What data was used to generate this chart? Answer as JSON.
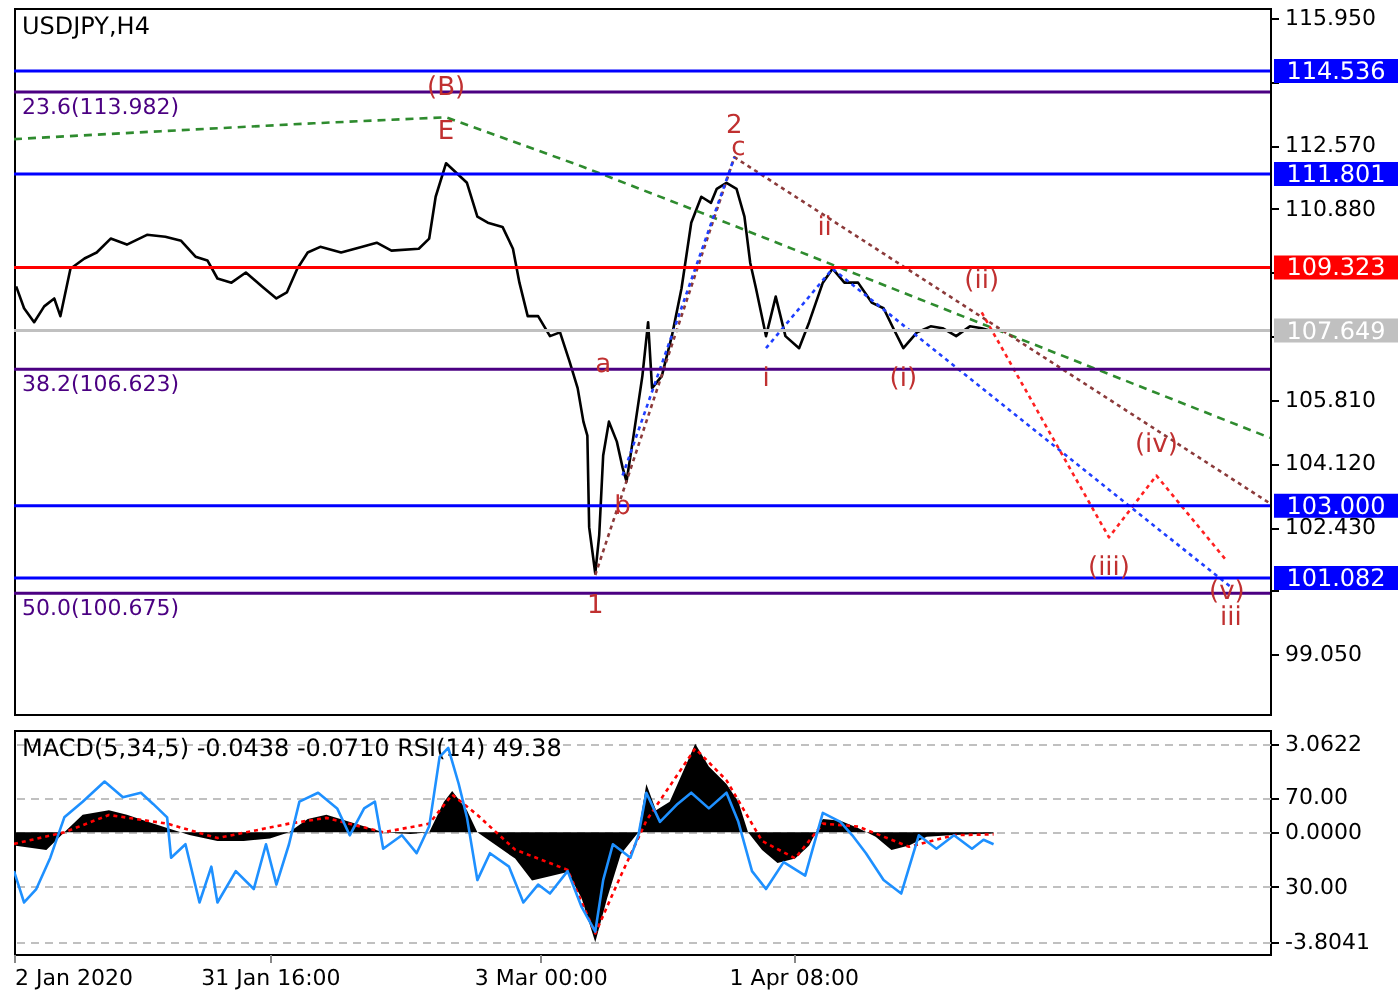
{
  "chart_data": [
    {
      "type": "line",
      "title": "USDJPY,H4",
      "xlim": [
        "2020-01-02T00:00",
        "2020-05-26T14:00"
      ],
      "ylim": [
        97.47,
        116.21
      ],
      "tick_labels": "y",
      "yticks": [
        {
          "value": 115.95,
          "label": "115.950"
        },
        {
          "value": 114.26,
          "label": null
        },
        {
          "value": 112.57,
          "label": "112.570"
        },
        {
          "value": 110.88,
          "label": "110.880"
        },
        {
          "value": 109.19,
          "label": null
        },
        {
          "value": 107.5,
          "label": null
        },
        {
          "value": 105.81,
          "label": "105.810"
        },
        {
          "value": 104.12,
          "label": "104.120"
        },
        {
          "value": 102.43,
          "label": "102.430"
        },
        {
          "value": 100.74,
          "label": null
        },
        {
          "value": 99.05,
          "label": "99.050"
        }
      ],
      "series": [
        {
          "color": "#000000",
          "x": [
            "2020-01-02T06:00",
            "2020-01-03T04:00",
            "2020-01-04T08:00",
            "2020-01-05T12:00",
            "2020-01-06T16:00",
            "2020-01-07T09:00",
            "2020-01-08T13:00",
            "2020-01-10T04:00",
            "2020-01-11T14:00",
            "2020-01-13T05:00",
            "2020-01-15T02:00",
            "2020-01-17T10:00",
            "2020-01-19T13:00",
            "2020-01-21T09:00",
            "2020-01-23T01:00",
            "2020-01-24T10:00",
            "2020-01-25T14:00",
            "2020-01-27T05:00",
            "2020-01-28T21:00",
            "2020-01-30T18:00",
            "2020-02-01T10:00",
            "2020-02-02T15:00",
            "2020-02-03T20:00",
            "2020-02-05T01:00",
            "2020-02-06T12:00",
            "2020-02-08T22:00",
            "2020-02-11T09:00",
            "2020-02-13T01:00",
            "2020-02-14T18:00",
            "2020-02-17T22:00",
            "2020-02-19T03:00",
            "2020-02-19T21:00",
            "2020-02-21T02:00",
            "2020-02-22T07:00",
            "2020-02-23T12:00",
            "2020-02-24T17:00",
            "2020-02-25T22:00",
            "2020-02-27T15:00",
            "2020-02-28T20:00",
            "2020-02-29T14:00",
            "2020-03-01T13:00",
            "2020-03-02T18:00",
            "2020-03-04T03:00",
            "2020-03-05T07:00",
            "2020-03-06T10:00",
            "2020-03-07T08:00",
            "2020-03-08T00:00",
            "2020-03-08T11:00",
            "2020-03-08T16:00",
            "2020-03-09T09:00",
            "2020-03-09T20:00",
            "2020-03-10T07:00",
            "2020-03-10T23:00",
            "2020-03-11T21:00",
            "2020-03-12T13:00",
            "2020-03-13T00:00",
            "2020-03-13T17:00",
            "2020-03-14T20:00",
            "2020-03-15T12:00",
            "2020-03-15T23:00",
            "2020-03-17T02:00",
            "2020-03-18T06:00",
            "2020-03-19T09:00",
            "2020-03-20T12:00",
            "2020-03-21T16:00",
            "2020-03-22T19:00",
            "2020-03-23T11:00",
            "2020-03-24T14:00",
            "2020-03-25T18:00",
            "2020-03-26T16:00",
            "2020-03-27T08:00",
            "2020-03-28T00:00",
            "2020-03-29T04:00",
            "2020-03-30T07:00",
            "2020-03-31T10:00",
            "2020-04-02T00:00",
            "2020-04-03T04:00",
            "2020-04-04T18:00",
            "2020-04-05T21:00",
            "2020-04-07T06:00",
            "2020-04-08T20:00",
            "2020-04-10T10:00",
            "2020-04-11T19:00",
            "2020-04-12T22:00",
            "2020-04-14T02:00",
            "2020-04-15T16:00",
            "2020-04-17T06:00",
            "2020-04-18T15:00",
            "2020-04-20T05:00",
            "2020-04-21T19:00",
            "2020-04-23T04:00",
            "2020-04-24T02:00"
          ],
          "values": [
            108.82,
            108.24,
            107.87,
            108.29,
            108.5,
            108.03,
            109.29,
            109.56,
            109.72,
            110.09,
            109.93,
            110.19,
            110.14,
            110.03,
            109.61,
            109.51,
            109.03,
            108.92,
            109.19,
            108.82,
            108.5,
            108.66,
            109.29,
            109.72,
            109.87,
            109.72,
            109.87,
            109.98,
            109.77,
            109.82,
            110.09,
            111.2,
            112.09,
            111.83,
            111.57,
            110.67,
            110.51,
            110.4,
            109.82,
            108.92,
            108.03,
            108.03,
            107.5,
            107.6,
            106.81,
            106.12,
            105.23,
            104.86,
            102.43,
            101.2,
            102.22,
            104.33,
            105.23,
            104.7,
            104.01,
            103.64,
            104.7,
            106.44,
            107.87,
            106.12,
            106.44,
            107.5,
            108.77,
            110.51,
            111.2,
            111.04,
            111.41,
            111.57,
            111.41,
            110.67,
            109.45,
            108.77,
            107.5,
            108.55,
            107.5,
            107.18,
            107.87,
            108.92,
            109.29,
            108.92,
            108.92,
            108.39,
            108.24,
            107.71,
            107.18,
            107.6,
            107.76,
            107.71,
            107.5,
            107.76,
            107.71,
            107.65
          ]
        },
        {
          "color": "#2e8b2e",
          "line_style": "dashed",
          "x": [
            "2020-01-02T00:00",
            "2020-01-19T01:00",
            "2020-02-05T18:00",
            "2020-02-21T02:00",
            "2020-03-08T00:00",
            "2020-03-20T12:00",
            "2020-05-26T14:00"
          ],
          "values": [
            112.73,
            112.94,
            113.15,
            113.31,
            111.99,
            110.88,
            104.8
          ]
        },
        {
          "color": "#8b3a3a",
          "line_style": "dotted",
          "x": [
            "2020-03-09T09:00",
            "2020-03-25T12:00",
            "2020-05-26T14:00"
          ],
          "values": [
            101.16,
            112.25,
            103.06
          ]
        },
        {
          "color": "#1f3fff",
          "line_style": "dotted",
          "x": [
            "2020-03-12T13:00",
            "2020-03-25T12:00"
          ],
          "values": [
            103.8,
            112.25
          ]
        },
        {
          "color": "#1f3fff",
          "line_style": "dotted",
          "x": [
            "2020-03-29T04:00",
            "2020-04-05T21:00",
            "2020-05-22T01:00"
          ],
          "values": [
            107.18,
            109.29,
            100.84
          ]
        },
        {
          "color": "#ff2020",
          "line_style": "dotted",
          "x": [
            "2020-04-23T04:00",
            "2020-05-07T22:00",
            "2020-05-13T10:00",
            "2020-05-21T14:00"
          ],
          "values": [
            108.13,
            102.16,
            103.8,
            101.53
          ]
        }
      ],
      "ref_lines": [
        {
          "axis": "y",
          "value": 114.536,
          "label": "114.536",
          "color": "#0000ff"
        },
        {
          "axis": "y",
          "value": 111.801,
          "label": "111.801",
          "color": "#0000ff"
        },
        {
          "axis": "y",
          "value": 109.323,
          "label": "109.323",
          "color": "#ff0000"
        },
        {
          "axis": "y",
          "value": 107.649,
          "label": "107.649",
          "color": "#c0c0c0"
        },
        {
          "axis": "y",
          "value": 103.0,
          "label": "103.000",
          "color": "#0000ff"
        },
        {
          "axis": "y",
          "value": 101.082,
          "label": "101.082",
          "color": "#0000ff"
        },
        {
          "axis": "y",
          "value": 113.982,
          "label": "23.6(113.982)",
          "color": "#4b0082"
        },
        {
          "axis": "y",
          "value": 106.623,
          "label": "38.2(106.623)",
          "color": "#4b0082"
        },
        {
          "axis": "y",
          "value": 100.675,
          "label": "50.0(100.675)",
          "color": "#4b0082"
        }
      ],
      "annotations": [
        {
          "text": "(B)",
          "x": "2020-02-21T02:00",
          "y": 114.1
        },
        {
          "text": "E",
          "x": "2020-02-21T02:00",
          "y": 112.09
        },
        {
          "text": "2",
          "x": "2020-03-25T12:00",
          "y": 112.25
        },
        {
          "text": "c",
          "x": "2020-03-25T23:00",
          "y": 112.52
        },
        {
          "text": "a",
          "x": "2020-03-10T07:00",
          "y": 106.76
        },
        {
          "text": "b",
          "x": "2020-03-12T13:00",
          "y": 103.8
        },
        {
          "text": "1",
          "x": "2020-03-09T09:00",
          "y": 101.16
        },
        {
          "text": "i",
          "x": "2020-03-29T04:00",
          "y": 107.18
        },
        {
          "text": "ii",
          "x": "2020-04-04T23:00",
          "y": 110.4
        },
        {
          "text": "(i)",
          "x": "2020-04-14T02:00",
          "y": 107.18
        },
        {
          "text": "(ii)",
          "x": "2020-04-23T04:00",
          "y": 108.13
        },
        {
          "text": "(iii)",
          "x": "2020-05-07T22:00",
          "y": 102.16
        },
        {
          "text": "(iv)",
          "x": "2020-05-13T10:00",
          "y": 103.8
        },
        {
          "text": "(v)",
          "x": "2020-05-21T14:00",
          "y": 101.53
        },
        {
          "text": "iii",
          "x": "2020-05-22T01:00",
          "y": 100.84
        }
      ]
    },
    {
      "type": "line",
      "title": "MACD(5,34,5) -0.0438 -0.0710 RSI(14) 49.38",
      "xlim": [
        "2020-01-02T00:00",
        "2020-05-26T14:00"
      ],
      "xticks": [
        {
          "value": "2020-01-02T00:00",
          "label": "2 Jan 2020"
        },
        {
          "value": "2020-01-31T16:00",
          "label": "31 Jan 16:00"
        },
        {
          "value": "2020-03-03T00:00",
          "label": "3 Mar 00:00"
        },
        {
          "value": "2020-04-01T08:00",
          "label": "1 Apr 08:00"
        }
      ],
      "ylim": [
        -4.21,
        3.54
      ],
      "yticks": [
        3.0622,
        {
          "value": 0,
          "label": "0.0000"
        },
        -3.8041
      ],
      "grid": "y",
      "y2lim": [
        0,
        100
      ],
      "y2ticks": [
        {
          "value": 70,
          "label": "70.00"
        },
        {
          "value": 30,
          "label": "30.00"
        }
      ],
      "series": [
        {
          "type": "area",
          "color": "#000000",
          "x": [
            "2020-01-02T00:00",
            "2020-01-05T18:00",
            "2020-01-07T20:00",
            "2020-01-09T23:00",
            "2020-01-13T00:00",
            "2020-01-15T02:00",
            "2020-01-17T04:00",
            "2020-01-19T18:00",
            "2020-01-22T08:00",
            "2020-01-25T14:00",
            "2020-01-28T15:00",
            "2020-01-31T16:00",
            "2020-02-02T21:00",
            "2020-02-05T01:00",
            "2020-02-07T05:00",
            "2020-02-10T15:00",
            "2020-02-13T19:00",
            "2020-02-16T23:00",
            "2020-02-19T03:00",
            "2020-02-20T20:00",
            "2020-02-21T19:00",
            "2020-02-23T12:00",
            "2020-02-24T17:00",
            "2020-02-26T22:00",
            "2020-02-29T02:00",
            "2020-03-02T01:00",
            "2020-03-04T03:00",
            "2020-03-06T04:00",
            "2020-03-07T19:00",
            "2020-03-09T09:00",
            "2020-03-10T18:00",
            "2020-03-12T08:00",
            "2020-03-14T09:00",
            "2020-03-15T07:00",
            "2020-03-16T10:00",
            "2020-03-18T00:00",
            "2020-03-19T09:00",
            "2020-03-20T23:00",
            "2020-03-22T13:00",
            "2020-03-24T14:00",
            "2020-03-25T23:00",
            "2020-03-27T02:00",
            "2020-03-28T17:00",
            "2020-03-30T12:00",
            "2020-04-01T13:00",
            "2020-04-03T04:00",
            "2020-04-04T18:00",
            "2020-04-06T19:00",
            "2020-04-08T20:00",
            "2020-04-10T21:00",
            "2020-04-12T17:00",
            "2020-04-14T18:00",
            "2020-04-16T19:00",
            "2020-04-19T23:00",
            "2020-04-22T22:00",
            "2020-04-24T13:00"
          ],
          "values": [
            -0.46,
            -0.61,
            0,
            0.61,
            0.76,
            0.61,
            0.4,
            0.15,
            -0.09,
            -0.3,
            -0.3,
            -0.21,
            0,
            0.46,
            0.61,
            0.3,
            0,
            -0.06,
            0,
            1.06,
            1.43,
            0.76,
            0,
            -0.46,
            -0.91,
            -1.67,
            -1.52,
            -1.37,
            -2.28,
            -3.8,
            -2.28,
            -0.76,
            0,
            1.67,
            0.76,
            1.06,
            1.98,
            3.06,
            2.28,
            1.67,
            1.06,
            0,
            -0.61,
            -1.06,
            -0.91,
            -0.46,
            0.46,
            0.4,
            0.15,
            -0.15,
            -0.61,
            -0.46,
            -0.15,
            -0.09,
            -0.06,
            -0.04
          ]
        },
        {
          "color": "#ff0000",
          "line_style": "dotted",
          "x": [
            "2020-01-02T00:00",
            "2020-01-07T20:00",
            "2020-01-13T00:00",
            "2020-01-19T18:00",
            "2020-01-25T14:00",
            "2020-02-02T21:00",
            "2020-02-07T05:00",
            "2020-02-13T19:00",
            "2020-02-19T03:00",
            "2020-02-21T19:00",
            "2020-02-24T17:00",
            "2020-02-29T02:00",
            "2020-03-06T04:00",
            "2020-03-09T09:00",
            "2020-03-12T08:00",
            "2020-03-15T07:00",
            "2020-03-20T23:00",
            "2020-03-24T14:00",
            "2020-03-28T17:00",
            "2020-04-01T13:00",
            "2020-04-04T18:00",
            "2020-04-08T20:00",
            "2020-04-14T18:00",
            "2020-04-19T23:00",
            "2020-04-24T13:00"
          ],
          "values": [
            -0.4,
            0,
            0.6,
            0.3,
            -0.2,
            0.3,
            0.5,
            0,
            0.3,
            1.3,
            0.6,
            -0.6,
            -1.3,
            -3.5,
            -1.5,
            0.4,
            2.9,
            1.8,
            -0.3,
            -0.9,
            0.3,
            0.2,
            -0.5,
            -0.1,
            -0.07
          ]
        },
        {
          "color": "#1e90ff",
          "axis": "y2",
          "x": [
            "2020-01-02T00:00",
            "2020-01-03T04:00",
            "2020-01-04T14:00",
            "2020-01-06T05:00",
            "2020-01-07T20:00",
            "2020-01-09T23:00",
            "2020-01-12T12:00",
            "2020-01-14T15:00",
            "2020-01-16T17:00",
            "2020-01-18T03:00",
            "2020-01-19T18:00",
            "2020-01-20T05:00",
            "2020-01-21T21:00",
            "2020-01-23T12:00",
            "2020-01-24T21:00",
            "2020-01-25T14:00",
            "2020-01-27T17:00",
            "2020-01-29T19:00",
            "2020-01-31T05:00",
            "2020-02-01T10:00",
            "2020-02-02T21:00",
            "2020-02-04T02:00",
            "2020-02-06T06:00",
            "2020-02-08T11:00",
            "2020-02-09T22:00",
            "2020-02-11T14:00",
            "2020-02-12T20:00",
            "2020-02-13T19:00",
            "2020-02-15T23:00",
            "2020-02-17T16:00",
            "2020-02-19T03:00",
            "2020-02-20T08:00",
            "2020-02-21T08:00",
            "2020-02-22T13:00",
            "2020-02-23T12:00",
            "2020-02-24T17:00",
            "2020-02-26T04:00",
            "2020-02-28T09:00",
            "2020-03-01T01:00",
            "2020-03-02T18:00",
            "2020-03-04T03:00",
            "2020-03-06T04:00",
            "2020-03-07T19:00",
            "2020-03-09T09:00",
            "2020-03-10T07:00",
            "2020-03-11T10:00",
            "2020-03-13T11:00",
            "2020-03-14T09:00",
            "2020-03-15T07:00",
            "2020-03-16T21:00",
            "2020-03-18T22:00",
            "2020-03-20T12:00",
            "2020-03-22T13:00",
            "2020-03-24T14:00",
            "2020-03-25T23:00",
            "2020-03-27T13:00",
            "2020-03-29T04:00",
            "2020-03-31T05:00",
            "2020-04-02T17:00",
            "2020-04-04T18:00",
            "2020-04-06T19:00",
            "2020-04-08T04:00",
            "2020-04-09T18:00",
            "2020-04-11T19:00",
            "2020-04-13T20:00",
            "2020-04-15T21:00",
            "2020-04-17T22:00",
            "2020-04-19T23:00",
            "2020-04-22T01:00",
            "2020-04-23T09:00",
            "2020-04-24T13:00"
          ],
          "values": [
            37,
            23,
            29,
            43,
            61,
            68,
            77,
            70,
            72,
            67,
            61,
            43,
            49,
            23,
            39,
            23,
            37,
            29,
            49,
            31,
            49,
            68,
            72,
            65,
            53,
            65,
            68,
            47,
            53,
            45,
            57,
            88,
            92,
            76,
            61,
            33,
            45,
            39,
            23,
            31,
            27,
            37,
            21,
            10,
            33,
            49,
            43,
            53,
            72,
            59,
            67,
            72,
            65,
            72,
            59,
            37,
            29,
            41,
            35,
            63,
            59,
            53,
            45,
            33,
            27,
            53,
            47,
            53,
            47,
            51,
            49
          ]
        }
      ]
    }
  ]
}
